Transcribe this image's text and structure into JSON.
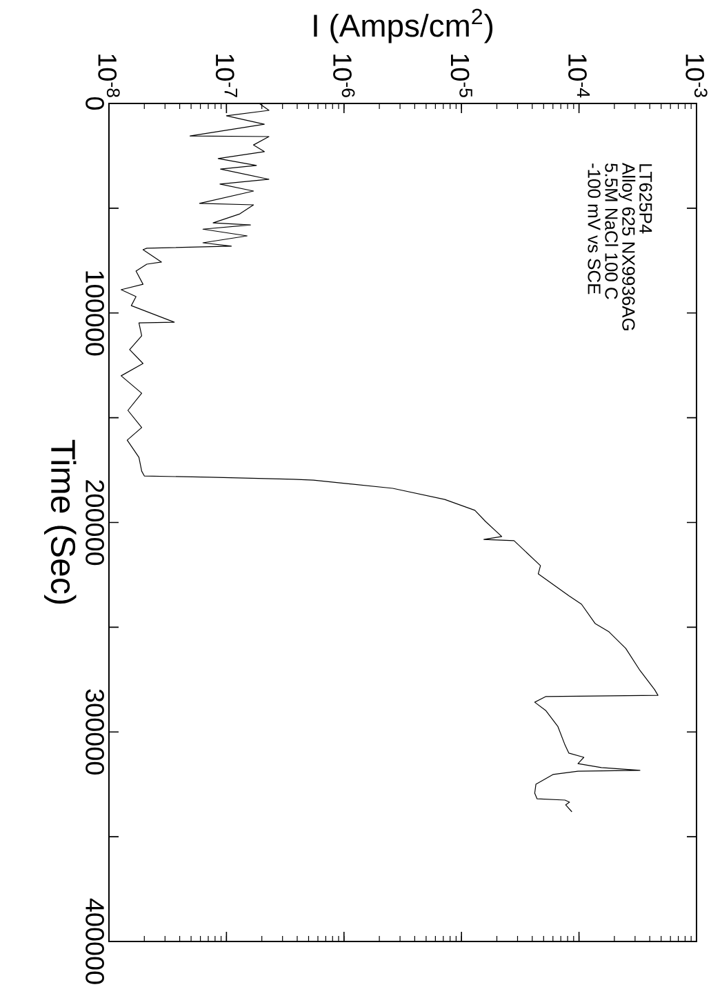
{
  "chart_data": {
    "type": "line",
    "xlabel": "I (Amps/cm$^{2}$)",
    "ylabel": "Time (Sec)",
    "annotations": [
      "LT625P4",
      "Alloy 625 NX9936AG",
      "5.5M NaCl 100 C",
      "-100 mV vs SCE"
    ],
    "color": "#000000",
    "log": "x",
    "xlim": [
      1e-08,
      0.001
    ],
    "ylim": [
      400000,
      0
    ],
    "xticks": [
      {
        "value": 1e-08,
        "label": "10$^{-8}$"
      },
      {
        "value": 1e-07,
        "label": "10$^{-7}$"
      },
      {
        "value": 1e-06,
        "label": "10$^{-6}$"
      },
      {
        "value": 1e-05,
        "label": "10$^{-5}$"
      },
      {
        "value": 0.0001,
        "label": "10$^{-4}$"
      },
      {
        "value": 0.001,
        "label": "10$^{-3}$"
      }
    ],
    "yticks": [
      0,
      {
        "value": 50000,
        "label": null
      },
      100000,
      {
        "value": 150000,
        "label": null
      },
      200000,
      {
        "value": 250000,
        "label": null
      },
      300000,
      {
        "value": 350000,
        "label": null
      },
      400000
    ],
    "values": [
      0,
      3300,
      5900,
      9900,
      15500,
      15800,
      19800,
      23000,
      26300,
      29600,
      31300,
      36200,
      38500,
      41800,
      47700,
      48400,
      52700,
      57000,
      58000,
      60000,
      63200,
      66500,
      68100,
      69100,
      69800,
      75700,
      76700,
      80000,
      86300,
      88900,
      92200,
      96500,
      104400,
      104700,
      110900,
      117500,
      124100,
      130000,
      138300,
      146500,
      154700,
      160700,
      168900,
      175500,
      177800,
      178400,
      179400,
      179800,
      183700,
      189000,
      194200,
      199500,
      206700,
      208100,
      208700,
      220600,
      224500,
      235000,
      239000,
      248200,
      252200,
      260100,
      270600,
      279800,
      282500,
      283100,
      285800,
      289700,
      297300,
      306200,
      310100,
      312100,
      315100,
      317000,
      318300,
      318700,
      320300,
      324900,
      329200,
      331900,
      332500,
      333500,
      334800,
      338100
    ],
    "x": [
      1.9e-07,
      2.3e-07,
      1e-07,
      2.1e-07,
      4.9e-08,
      2.3e-07,
      1.7e-07,
      2.1e-07,
      8.5e-08,
      1.8e-07,
      8.9e-08,
      2.3e-07,
      8.8e-08,
      1.7e-07,
      5.9e-08,
      1.7e-07,
      1.3e-07,
      7.7e-08,
      1.6e-07,
      6.3e-08,
      1.5e-07,
      6.3e-08,
      1.1e-07,
      2.1e-08,
      1.95e-08,
      2.8e-08,
      2.1e-08,
      1.7e-08,
      1.95e-08,
      1.27e-08,
      1.7e-08,
      1.55e-08,
      3.6e-08,
      1.8e-08,
      1.9e-08,
      1.5e-08,
      1.95e-08,
      1.27e-08,
      1.9e-08,
      1.45e-08,
      1.9e-08,
      1.43e-08,
      1.8e-08,
      1.9e-08,
      2e-08,
      7.2e-08,
      3.7e-07,
      5.5e-07,
      2.6e-06,
      7.2e-06,
      1.3e-05,
      1.6e-05,
      2.2e-05,
      1.55e-05,
      2.8e-05,
      4.7e-05,
      4.5e-05,
      8.2e-05,
      0.000105,
      0.000137,
      0.00018,
      0.00025,
      0.00033,
      0.00044,
      0.00047,
      5.2e-05,
      4.2e-05,
      5.2e-05,
      6.6e-05,
      7.6e-05,
      8.2e-05,
      0.00011,
      9.8e-05,
      0.000155,
      0.00033,
      9.8e-05,
      6e-05,
      4.3e-05,
      4.2e-05,
      4.4e-05,
      7.6e-05,
      8.3e-05,
      7.7e-05,
      8.7e-05
    ]
  }
}
